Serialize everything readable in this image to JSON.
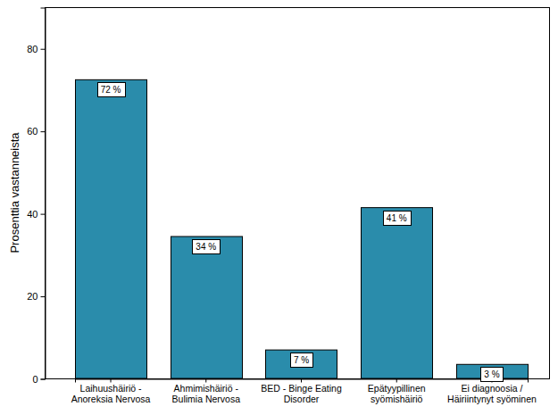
{
  "chart_data": {
    "type": "bar",
    "y_label": "Prosenttia vastanneista",
    "categories": [
      "Laihuushäiriö -\nAnoreksia Nervosa",
      "Ahmimishäiriö -\nBulimia Nervosa",
      "BED - Binge Eating\nDisorder",
      "Epätyypillinen\nsyömishäiriö",
      "Ei diagnoosia /\nHäiriintynyt syöminen"
    ],
    "values": [
      72.4,
      34.4,
      6.9,
      41.4,
      3.4
    ],
    "value_labels": [
      "72 %",
      "34 %",
      "7 %",
      "41 %",
      "3 %"
    ],
    "data_labels": true,
    "color": "#2a8cab",
    "ylim": [
      0,
      90
    ],
    "yticks": [
      0,
      20,
      40,
      60,
      80
    ],
    "grid": false
  }
}
